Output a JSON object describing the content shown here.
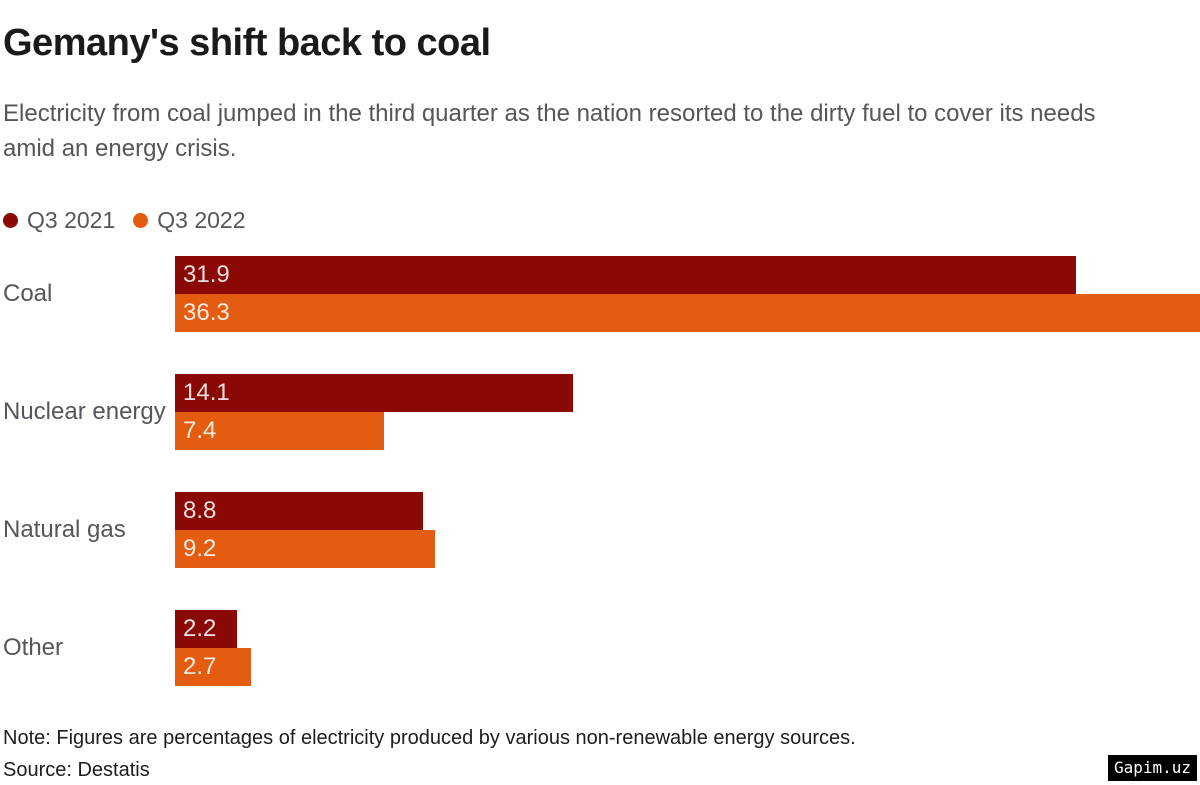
{
  "chart_data": {
    "type": "bar",
    "orientation": "horizontal",
    "title": "Gemany's shift back to coal",
    "subtitle": "Electricity from coal jumped in the third quarter as the nation resorted to the dirty fuel to cover its needs amid an energy crisis.",
    "categories": [
      "Coal",
      "Nuclear energy",
      "Natural gas",
      "Other"
    ],
    "series": [
      {
        "name": "Q3 2021",
        "color": "#8b0904",
        "values": [
          31.9,
          14.1,
          8.8,
          2.2
        ]
      },
      {
        "name": "Q3 2022",
        "color": "#e35c0f",
        "values": [
          36.3,
          7.4,
          9.2,
          2.7
        ]
      }
    ],
    "xlim": [
      0,
      36.3
    ],
    "xlabel": "",
    "ylabel": "",
    "grid": false,
    "legend_position": "top-left",
    "value_labels": "inside-start",
    "note": "Note: Figures are percentages of electricity produced by various non-renewable energy sources.",
    "source": "Source: Destatis"
  },
  "watermark": "Gapim.uz",
  "colors": {
    "q3_2021": "#8b0904",
    "q3_2022": "#e35c0f",
    "title_text": "#1a1a1a",
    "body_text": "#54565b",
    "footer_text": "#1d1d1d",
    "bar_value_text": "rgba(255,255,255,0.87)"
  }
}
